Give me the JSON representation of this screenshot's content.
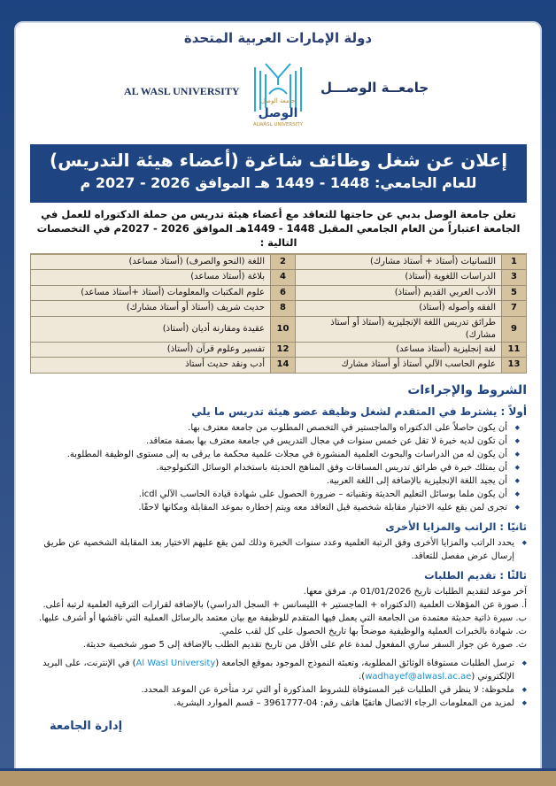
{
  "header": {
    "country": "دولة الإمارات العربية المتحدة",
    "university_en": "AL WASL UNIVERSITY",
    "university_ar": "جامعــة الوصـــل",
    "logo_text_ar": "جامعة الوصل",
    "logo_text_en": "ALWASL UNIVERSITY"
  },
  "title": {
    "line1": "إعلان عن شغل وظائف شاغرة (أعضاء هيئة التدريس)",
    "line2": "للعام الجامعي: 1448 - 1449 هـ الموافق 2026 - 2027 م"
  },
  "intro": "تعلن جامعة الوصل بدبي عن حاجتها للتعاقد مع أعضاء هيئة تدريس من حملة الدكتوراه للعمل في الجامعة اعتباراً من العام الجامعي المقبل 1448 - 1449هـ الموافق 2026 - 2027م في التخصصات التالية :",
  "specializations": [
    [
      "1",
      "اللسانيات (أستاذ + أستاذ مشارك)",
      "2",
      "اللغة (النحو والصرف) (أستاذ مساعد)"
    ],
    [
      "3",
      "الدراسات اللغوية (أستاذ)",
      "4",
      "بلاغة (أستاذ مساعد)"
    ],
    [
      "5",
      "الأدب العربي القديم (أستاذ)",
      "6",
      "علوم المكتبات والمعلومات (أستاذ +أستاذ مساعد)"
    ],
    [
      "7",
      "الفقه وأصوله (أستاذ)",
      "8",
      "حديث شريف (أستاذ أو أستاذ مشارك)"
    ],
    [
      "9",
      "طرائق تدريس اللغة الإنجليزية (أستاذ أو أستاذ مشارك)",
      "10",
      "عقيدة ومقارنة أديان (أستاذ)"
    ],
    [
      "11",
      "لغة إنجليزية (أستاذ مساعد)",
      "12",
      "تفسير وعلوم قرآن (أستاذ)"
    ],
    [
      "13",
      "علوم الحاسب الآلي أستاذ أو أستاذ مشارك",
      "14",
      "أدب ونقد حديث أستاذ"
    ]
  ],
  "conditions": {
    "heading": "الشروط والإجراءات",
    "first": {
      "heading": "أولاً : يشترط في المتقدم لشغل وظيفة عضو هيئة تدريس ما يلي",
      "items": [
        "أن يكون حاصلاً على الدكتوراه والماجستير في التخصص المطلوب من جامعة معترف بها.",
        "أن تكون لديه خبرة لا تقل عن خمس سنوات في مجال التدريس في جامعة معترف بها بصفة متعاقد.",
        "أن يكون له من الدراسات والبحوث العلمية المنشورة في مجلات علمية محكمة ما يرقى به إلى مستوى الوظيفة المطلوبة.",
        "أن يمتلك خبرة في طرائق تدريس المساقات وفق المناهج الحديثة باستخدام الوسائل التكنولوجية.",
        "أن يجيد اللغة الإنجليزية بالإضافة إلى اللغة العربية.",
        "أن يكون ملما بوسائل التعليم الحديثة وتقنياته – ضرورة الحصول على شهادة قيادة الحاسب الآلي icdl.",
        "تجرى لمن يقع عليه الاختيار مقابلة شخصية قبل التعاقد معه ويتم إخطاره بموعد المقابلة ومكانها لاحقًا."
      ]
    },
    "second": {
      "heading": "ثانيًا : الراتب والمزايا الأخرى",
      "items": [
        "يحدد الراتب والمزايا الأخرى وفق الرتبة العلمية وعدد سنوات الخبرة وذلك لمن يقع عليهم الاختيار بعد المقابلة الشخصية عن طريق إرسال عرض مفصل للتعاقد."
      ]
    },
    "third": {
      "heading": "ثالثًا : تقديم الطلبات",
      "deadline": "آخر موعد لتقديم الطلبات تاريخ 01/01/2026 م. مرفق معها.",
      "docs": [
        "أ.   صورة عن المؤهلات العلمية (الدكتوراه + الماجستير + الليسانس + السجل الدراسي) بالإضافة لقرارات الترقية العلمية لرتبة أعلى.",
        "ب. سيرة ذاتية حديثة معتمدة من الجامعة التي يعمل فيها المتقدم للوظيفة مع بيان معتمد بالرسائل العملية التي ناقشها أو أشرف عليها.",
        "ت. شهادة بالخبرات العملية والوظيفية موضحاً بها تاريخ الحصول على كل لقب علمي.",
        "ث. صورة عن جواز السفر ساري المفعول لمدة عام على الأقل من تاريخ تقديم الطلب بالإضافة إلى 5 صور شخصية حديثة."
      ],
      "submit_before": "ترسل الطلبات مستوفاة الوثائق المطلوبة، وتعبئة النموذج الموجود بموقع الجامعة (",
      "website": "Al Wasl University",
      "submit_middle": ") في الإنترنت، على البريد الإلكتروني (",
      "email": "wadhayef@alwasl.ac.ae",
      "submit_after": ").",
      "note": "ملحوظة: لا ينظر في الطلبات غير المستوفاة للشروط المذكورة أو التي ترد متأخرة عن الموعد المحدد.",
      "contact": "لمزيد من المعلومات الرجاء الاتصال هاتفيًا هاتف رقم: 04-3961777 – قسم الموارد البشرية."
    }
  },
  "signature": "إدارة الجامعة",
  "colors": {
    "brand_blue": "#1e4482",
    "tan": "#b5976c",
    "link": "#1a8fd2"
  }
}
